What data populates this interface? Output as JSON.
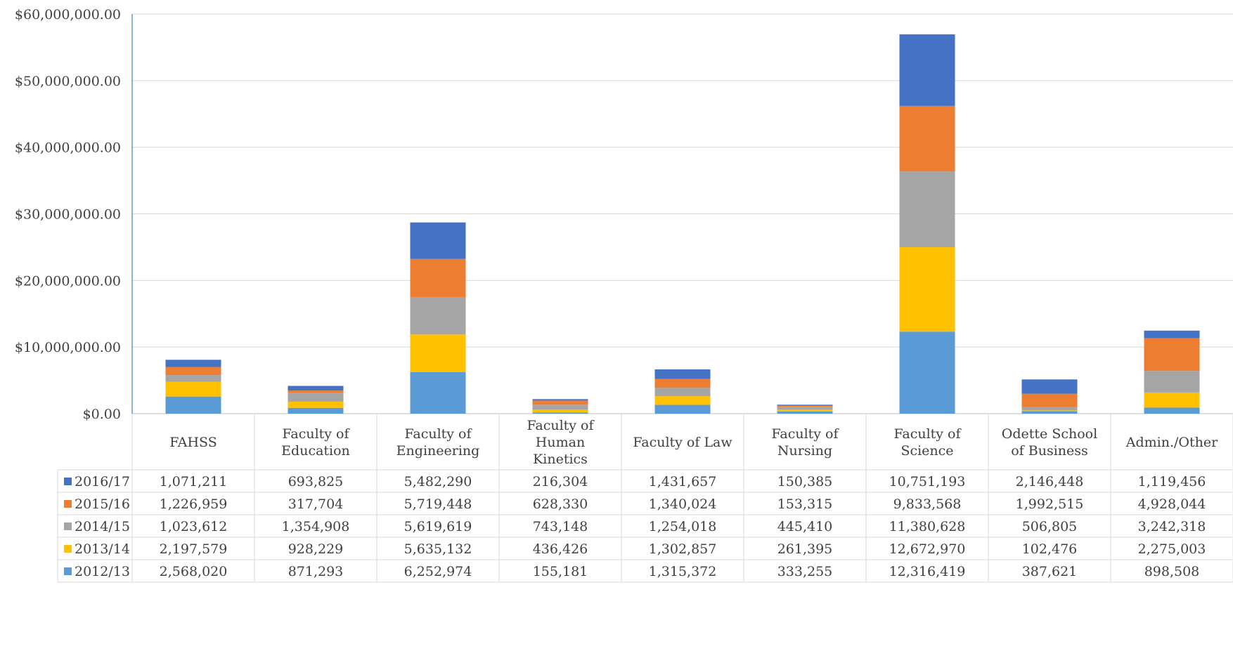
{
  "chart_data": {
    "type": "bar",
    "stacked": true,
    "title": "",
    "xlabel": "",
    "ylabel": "",
    "ylim": [
      0,
      60000000
    ],
    "y_ticks": [
      0,
      10000000,
      20000000,
      30000000,
      40000000,
      50000000,
      60000000
    ],
    "y_tick_labels": [
      "$0.00",
      "$10,000,000.00",
      "$20,000,000.00",
      "$30,000,000.00",
      "$40,000,000.00",
      "$50,000,000.00",
      "$60,000,000.00"
    ],
    "grid": true,
    "legend": "data-table",
    "categories": [
      [
        "FAHSS"
      ],
      [
        "Faculty of",
        "Education"
      ],
      [
        "Faculty of",
        "Engineering"
      ],
      [
        "Faculty of",
        "Human",
        "Kinetics"
      ],
      [
        "Faculty of Law"
      ],
      [
        "Faculty of",
        "Nursing"
      ],
      [
        "Faculty of",
        "Science"
      ],
      [
        "Odette School",
        "of Business"
      ],
      [
        "Admin./Other"
      ]
    ],
    "series": [
      {
        "name": "2012/13",
        "color": "#5B9BD5",
        "values": [
          2568020,
          871293,
          6252974,
          155181,
          1315372,
          333255,
          12316419,
          387621,
          898508
        ],
        "labels": [
          "2,568,020",
          "871,293",
          "6,252,974",
          "155,181",
          "1,315,372",
          "333,255",
          "12,316,419",
          "387,621",
          "898,508"
        ]
      },
      {
        "name": "2013/14",
        "color": "#FFC000",
        "values": [
          2197579,
          928229,
          5635132,
          436426,
          1302857,
          261395,
          12672970,
          102476,
          2275003
        ],
        "labels": [
          "2,197,579",
          "928,229",
          "5,635,132",
          "436,426",
          "1,302,857",
          "261,395",
          "12,672,970",
          "102,476",
          "2,275,003"
        ]
      },
      {
        "name": "2014/15",
        "color": "#A5A5A5",
        "values": [
          1023612,
          1354908,
          5619619,
          743148,
          1254018,
          445410,
          11380628,
          506805,
          3242318
        ],
        "labels": [
          "1,023,612",
          "1,354,908",
          "5,619,619",
          "743,148",
          "1,254,018",
          "445,410",
          "11,380,628",
          "506,805",
          "3,242,318"
        ]
      },
      {
        "name": "2015/16",
        "color": "#ED7D31",
        "values": [
          1226959,
          317704,
          5719448,
          628330,
          1340024,
          153315,
          9833568,
          1992515,
          4928044
        ],
        "labels": [
          "1,226,959",
          "317,704",
          "5,719,448",
          "628,330",
          "1,340,024",
          "153,315",
          "9,833,568",
          "1,992,515",
          "4,928,044"
        ]
      },
      {
        "name": "2016/17",
        "color": "#4472C4",
        "values": [
          1071211,
          693825,
          5482290,
          216304,
          1431657,
          150385,
          10751193,
          2146448,
          1119456
        ],
        "labels": [
          "1,071,211",
          "693,825",
          "5,482,290",
          "216,304",
          "1,431,657",
          "150,385",
          "10,751,193",
          "2,146,448",
          "1,119,456"
        ]
      }
    ]
  }
}
